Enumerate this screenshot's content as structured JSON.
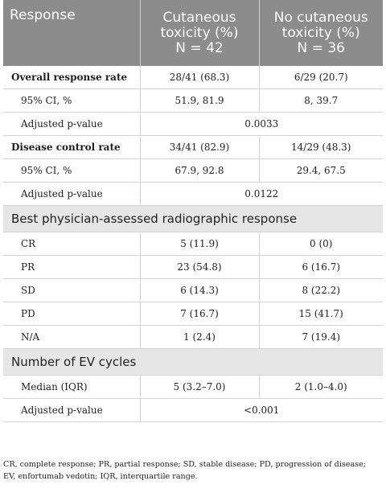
{
  "header": {
    "col1": "Response",
    "col2_line1": "Cutaneous",
    "col2_line2": "toxicity (%)",
    "col2_line3": "N = 42",
    "col3_line1": "No cutaneous",
    "col3_line2": "toxicity (%)",
    "col3_line3": "N = 36"
  },
  "rows": {
    "orr_label": "Overall response rate",
    "orr_tox": "28/41 (68.3)",
    "orr_notox": "6/29 (20.7)",
    "orr_ci_label": "95% CI, %",
    "orr_ci_tox": "51.9, 81.9",
    "orr_ci_notox": "8, 39.7",
    "orr_p_label": "Adjusted p-value",
    "orr_p": "0.0033",
    "dcr_label": "Disease control rate",
    "dcr_tox": "34/41 (82.9)",
    "dcr_notox": "14/29 (48.3)",
    "dcr_ci_label": "95% CI, %",
    "dcr_ci_tox": "67.9, 92.8",
    "dcr_ci_notox": "29.4, 67.5",
    "dcr_p_label": "Adjusted p-value",
    "dcr_p": "0.0122",
    "section1": "Best physician-assessed radiographic response",
    "cr_label": "CR",
    "cr_tox": "5 (11.9)",
    "cr_notox": "0 (0)",
    "pr_label": "PR",
    "pr_tox": "23 (54.8)",
    "pr_notox": "6 (16.7)",
    "sd_label": "SD",
    "sd_tox": "6 (14.3)",
    "sd_notox": "8 (22.2)",
    "pd_label": "PD",
    "pd_tox": "7 (16.7)",
    "pd_notox": "15 (41.7)",
    "na_label": "N/A",
    "na_tox": "1 (2.4)",
    "na_notox": "7 (19.4)",
    "section2": "Number of EV cycles",
    "median_label": "Median (IQR)",
    "median_tox": "5 (3.2–7.0)",
    "median_notox": "2 (1.0–4.0)",
    "ev_p_label": "Adjusted p-value",
    "ev_p": "<0.001"
  },
  "footnote": {
    "line1": "CR, complete response; PR, partial response; SD, stable disease; PD, progression of disease;",
    "line2": "EV, enfortumab vedotin; IQR, interquartile range."
  }
}
